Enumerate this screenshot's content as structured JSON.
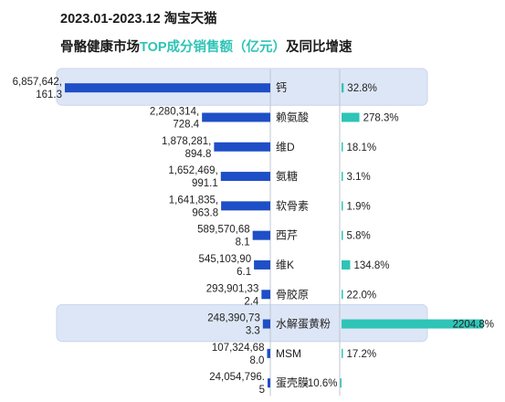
{
  "header": {
    "period": "2023.01-2023.12 淘宝天猫",
    "title_prefix": "骨骼健康市场",
    "title_highlight": "TOP成分销售额（亿元）",
    "title_suffix": "及同比增速"
  },
  "colors": {
    "sales_bar": "#1f4fc6",
    "growth_bar": "#2ec4b6",
    "highlight_bg": "#dde6f6",
    "highlight_border": "#c9d6ef",
    "divider": "#bfc6d0"
  },
  "chart_data": {
    "type": "bar",
    "title": "骨骼健康市场TOP成分销售额（亿元）及同比增速",
    "categories": [
      "钙",
      "赖氨酸",
      "维D",
      "氨糖",
      "软骨素",
      "西芹",
      "维K",
      "骨胶原",
      "水解蛋黄粉",
      "MSM",
      "蛋壳膜"
    ],
    "highlighted": [
      "钙",
      "水解蛋黄粉"
    ],
    "series": [
      {
        "values": [
          6857642161.3,
          2280314728.4,
          1878281894.8,
          1652469991.1,
          1641835963.8,
          589570688.1,
          545103906.1,
          293901332.4,
          248390733.3,
          107324688.0,
          24054796.5
        ],
        "value_labels": [
          [
            "6,857,642,",
            "161.3"
          ],
          [
            "2,280,314,",
            "728.4"
          ],
          [
            "1,878,281,",
            "894.8"
          ],
          [
            "1,652,469,",
            "991.1"
          ],
          [
            "1,641,835,",
            "963.8"
          ],
          [
            "589,570,68",
            "8.1"
          ],
          [
            "545,103,90",
            "6.1"
          ],
          [
            "293,901,33",
            "2.4"
          ],
          [
            "248,390,73",
            "3.3"
          ],
          [
            "107,324,68",
            "8.0"
          ],
          [
            "24,054,796.",
            "5"
          ]
        ]
      },
      {
        "values": [
          32.8,
          278.3,
          18.1,
          3.1,
          1.9,
          5.8,
          134.8,
          22.0,
          2204.8,
          17.2,
          -10.6
        ],
        "value_labels": [
          "32.8%",
          "278.3%",
          "18.1%",
          "3.1%",
          "1.9%",
          "5.8%",
          "134.8%",
          "22.0%",
          "2204.8%",
          "17.2%",
          "-10.6%"
        ]
      }
    ]
  }
}
